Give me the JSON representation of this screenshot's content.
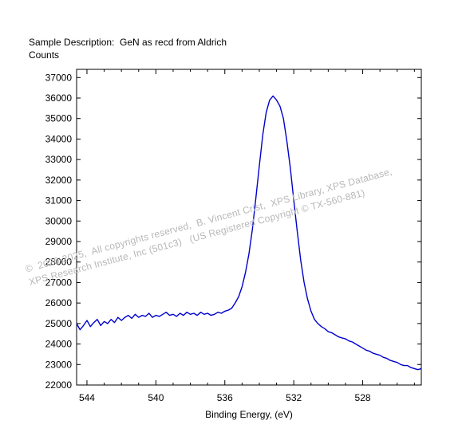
{
  "sample_description": "Sample Description:  GeN as recd from Aldrich",
  "watermark": {
    "line1": "©  2020-2025,  All copyrights reserved,  B. Vincent Crist,  XPS Library, XPS Database,",
    "line2": "XPS Research Institute, Inc (501c3)   (US Registered Copyright © TX-560-881)"
  },
  "chart_data": {
    "type": "line",
    "title": "",
    "xlabel": "Binding Energy, (eV)",
    "ylabel": "Counts",
    "xlim": [
      544.6,
      524.6
    ],
    "ylim": [
      22000,
      37400
    ],
    "x_reversed": true,
    "x_ticks": [
      544,
      540,
      536,
      532,
      528
    ],
    "y_ticks": [
      22000,
      23000,
      24000,
      25000,
      26000,
      27000,
      28000,
      29000,
      30000,
      31000,
      32000,
      33000,
      34000,
      35000,
      36000,
      37000
    ],
    "grid": false,
    "line_color": "#0000cc",
    "series": [
      {
        "x": [
          544.6,
          544.4,
          544.2,
          544.0,
          543.8,
          543.6,
          543.4,
          543.2,
          543.0,
          542.8,
          542.6,
          542.4,
          542.2,
          542.0,
          541.8,
          541.6,
          541.4,
          541.2,
          541.0,
          540.8,
          540.6,
          540.4,
          540.2,
          540.0,
          539.8,
          539.6,
          539.4,
          539.2,
          539.0,
          538.8,
          538.6,
          538.4,
          538.2,
          538.0,
          537.8,
          537.6,
          537.4,
          537.2,
          537.0,
          536.8,
          536.6,
          536.4,
          536.2,
          536.0,
          535.8,
          535.6,
          535.4,
          535.2,
          535.0,
          534.8,
          534.6,
          534.4,
          534.2,
          534.0,
          533.8,
          533.6,
          533.4,
          533.2,
          533.0,
          532.8,
          532.6,
          532.4,
          532.2,
          532.0,
          531.8,
          531.6,
          531.4,
          531.2,
          531.0,
          530.8,
          530.6,
          530.4,
          530.2,
          530.0,
          529.8,
          529.6,
          529.4,
          529.2,
          529.0,
          528.8,
          528.6,
          528.4,
          528.2,
          528.0,
          527.8,
          527.6,
          527.4,
          527.2,
          527.0,
          526.8,
          526.6,
          526.4,
          526.2,
          526.0,
          525.8,
          525.6,
          525.4,
          525.2,
          525.0,
          524.8,
          524.6
        ],
        "y": [
          25000,
          24700,
          24900,
          25150,
          24850,
          25050,
          25200,
          24900,
          25100,
          25000,
          25200,
          25050,
          25300,
          25150,
          25300,
          25400,
          25250,
          25450,
          25300,
          25400,
          25350,
          25500,
          25300,
          25400,
          25350,
          25450,
          25550,
          25400,
          25450,
          25350,
          25500,
          25400,
          25550,
          25450,
          25500,
          25400,
          25550,
          25450,
          25500,
          25400,
          25450,
          25550,
          25500,
          25600,
          25650,
          25750,
          26000,
          26300,
          26800,
          27500,
          28400,
          29600,
          31100,
          32700,
          34200,
          35300,
          35900,
          36100,
          35900,
          35600,
          35000,
          33900,
          32600,
          31000,
          29500,
          28100,
          27000,
          26200,
          25600,
          25200,
          25000,
          24850,
          24750,
          24600,
          24550,
          24450,
          24350,
          24300,
          24250,
          24150,
          24100,
          24000,
          23900,
          23800,
          23700,
          23650,
          23550,
          23500,
          23450,
          23350,
          23300,
          23200,
          23150,
          23100,
          23000,
          22950,
          22950,
          22850,
          22800,
          22750,
          22800
        ]
      }
    ]
  }
}
